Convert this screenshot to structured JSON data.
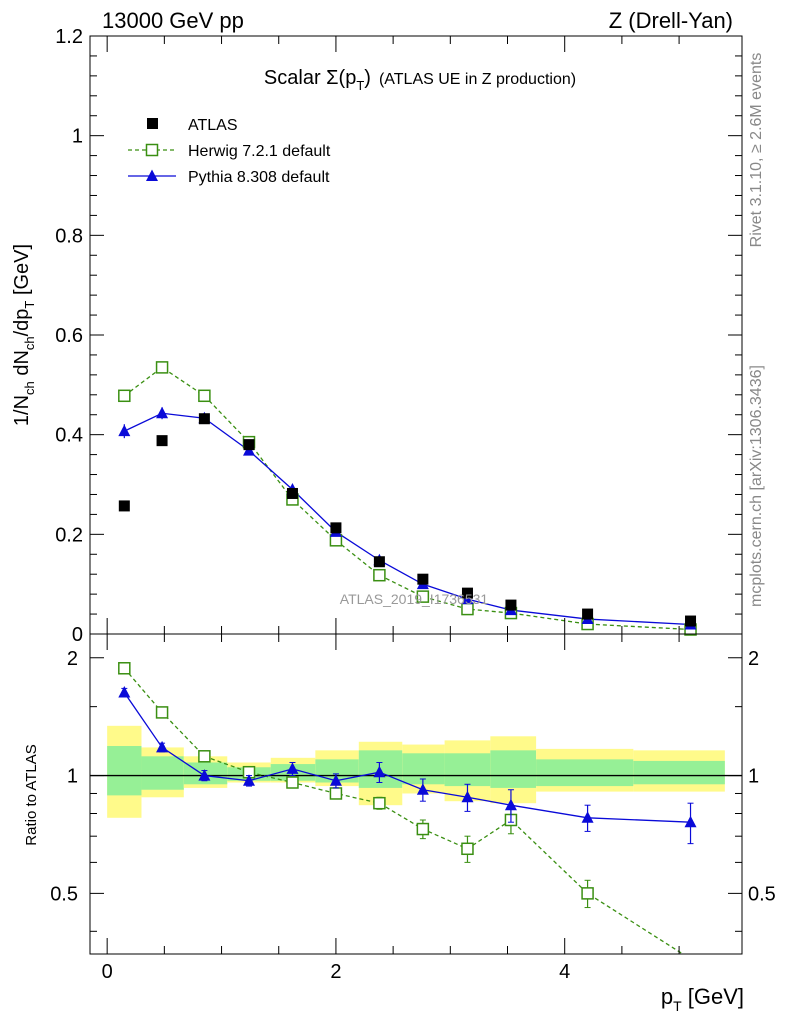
{
  "header": {
    "left": "13000 GeV pp",
    "right": "Z (Drell-Yan)"
  },
  "side_labels": {
    "rivet": "Rivet 3.1.10, ≥ 2.6M events",
    "mcplots": "mcplots.cern.ch [arXiv:1306.3436]"
  },
  "watermark": "ATLAS_2019_I1736531",
  "chart_data": [
    {
      "type": "scatter",
      "title": "Scalar Σ(p_T) (ATLAS UE in Z production)",
      "title_parts": {
        "main": "Scalar Σ(p",
        "sub": "T",
        "close": ")",
        "suffix": "(ATLAS UE in Z production)"
      },
      "ylabel": "1/N_ch dN_ch/dp_T [GeV]",
      "xlabel": "",
      "xlim": [
        -0.15,
        5.55
      ],
      "ylim": [
        0,
        1.2
      ],
      "yticks": [
        {
          "value": 0,
          "label": "0"
        },
        {
          "value": 0.2,
          "label": "0.2"
        },
        {
          "value": 0.4,
          "label": "0.4"
        },
        {
          "value": 0.6,
          "label": "0.6"
        },
        {
          "value": 0.8,
          "label": "0.8"
        },
        {
          "value": 1.0,
          "label": "1"
        },
        {
          "value": 1.2,
          "label": "1.2"
        }
      ],
      "legend": [
        {
          "label": "ATLAS",
          "style": "data"
        },
        {
          "label": "Herwig 7.2.1 default",
          "style": "herwig"
        },
        {
          "label": "Pythia 8.308 default",
          "style": "pythia"
        }
      ],
      "x": [
        0.15,
        0.48,
        0.85,
        1.24,
        1.62,
        2.0,
        2.38,
        2.76,
        3.15,
        3.53,
        4.2,
        5.1
      ],
      "series": [
        {
          "name": "ATLAS",
          "values": [
            0.257,
            0.388,
            0.432,
            0.38,
            0.282,
            0.213,
            0.145,
            0.11,
            0.082,
            0.058,
            0.04,
            0.026
          ],
          "errors": [
            0.005,
            0.005,
            0.005,
            0.004,
            0.004,
            0.003,
            0.003,
            0.002,
            0.002,
            0.002,
            0.001,
            0.001
          ]
        },
        {
          "name": "Herwig 7.2.1 default",
          "values": [
            0.478,
            0.535,
            0.478,
            0.385,
            0.27,
            0.188,
            0.118,
            0.075,
            0.05,
            0.042,
            0.02,
            0.009
          ],
          "errors": [
            0.01,
            0.01,
            0.008,
            0.007,
            0.006,
            0.004,
            0.004,
            0.003,
            0.002,
            0.002,
            0.001,
            0.001
          ]
        },
        {
          "name": "Pythia 8.308 default",
          "values": [
            0.407,
            0.443,
            0.433,
            0.368,
            0.29,
            0.205,
            0.148,
            0.1,
            0.07,
            0.048,
            0.03,
            0.019
          ],
          "errors": [
            0.014,
            0.012,
            0.01,
            0.008,
            0.007,
            0.006,
            0.005,
            0.004,
            0.003,
            0.003,
            0.002,
            0.002
          ]
        }
      ]
    },
    {
      "type": "line",
      "title": "",
      "ylabel": "Ratio to ATLAS",
      "xlabel": "p_T [GeV]",
      "xlim": [
        -0.15,
        5.55
      ],
      "ylim": [
        0.35,
        2.3
      ],
      "xticks": [
        {
          "value": 0,
          "label": "0"
        },
        {
          "value": 2,
          "label": "2"
        },
        {
          "value": 4,
          "label": "4"
        }
      ],
      "yticks": [
        {
          "value": 0.5,
          "label": "0.5"
        },
        {
          "value": 1,
          "label": "1"
        },
        {
          "value": 2,
          "label": "2"
        }
      ],
      "band_edges": [
        0.0,
        0.3,
        0.67,
        1.05,
        1.43,
        1.82,
        2.2,
        2.58,
        2.95,
        3.35,
        3.75,
        4.6,
        5.4
      ],
      "band_inner": [
        [
          0.89,
          1.19
        ],
        [
          0.92,
          1.12
        ],
        [
          0.95,
          1.08
        ],
        [
          0.97,
          1.05
        ],
        [
          0.97,
          1.07
        ],
        [
          0.96,
          1.1
        ],
        [
          0.93,
          1.16
        ],
        [
          0.95,
          1.14
        ],
        [
          0.94,
          1.14
        ],
        [
          0.93,
          1.16
        ],
        [
          0.94,
          1.1
        ],
        [
          0.95,
          1.09
        ]
      ],
      "band_outer": [
        [
          0.78,
          1.34
        ],
        [
          0.88,
          1.18
        ],
        [
          0.93,
          1.12
        ],
        [
          0.96,
          1.08
        ],
        [
          0.96,
          1.11
        ],
        [
          0.94,
          1.16
        ],
        [
          0.84,
          1.22
        ],
        [
          0.9,
          1.2
        ],
        [
          0.86,
          1.23
        ],
        [
          0.85,
          1.26
        ],
        [
          0.91,
          1.17
        ],
        [
          0.91,
          1.16
        ]
      ],
      "x": [
        0.15,
        0.48,
        0.85,
        1.24,
        1.62,
        2.0,
        2.38,
        2.76,
        3.15,
        3.53,
        4.2,
        5.1
      ],
      "series": [
        {
          "name": "Herwig 7.2.1 default",
          "values": [
            1.88,
            1.45,
            1.12,
            1.02,
            0.96,
            0.9,
            0.85,
            0.73,
            0.65,
            0.77,
            0.5,
            0.34
          ],
          "errors": [
            0.02,
            0.02,
            0.02,
            0.02,
            0.02,
            0.02,
            0.03,
            0.04,
            0.05,
            0.06,
            0.04,
            0.04
          ]
        },
        {
          "name": "Pythia 8.308 default",
          "values": [
            1.63,
            1.18,
            1.0,
            0.97,
            1.04,
            0.97,
            1.02,
            0.92,
            0.88,
            0.84,
            0.78,
            0.76
          ],
          "errors": [
            0.04,
            0.03,
            0.03,
            0.03,
            0.04,
            0.04,
            0.06,
            0.06,
            0.07,
            0.08,
            0.06,
            0.09
          ]
        }
      ]
    }
  ],
  "colors": {
    "data": "#000000",
    "herwig": "#3a8f12",
    "pythia": "#0a0ad8",
    "band_inner": "#96f096",
    "band_outer": "#fffa8a",
    "side_text": "#888888",
    "watermark": "#999999"
  }
}
